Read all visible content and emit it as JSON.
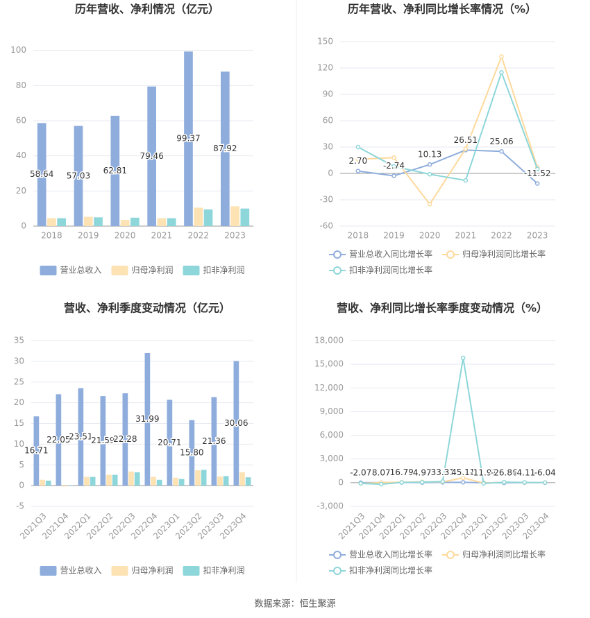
{
  "chart_data": [
    {
      "type": "bar",
      "title": "历年营收、净利情况（亿元）",
      "categories": [
        "2018",
        "2019",
        "2020",
        "2021",
        "2022",
        "2023"
      ],
      "series": [
        {
          "name": "营业总收入",
          "color": "#8eaddc",
          "values": [
            58.64,
            57.03,
            62.81,
            79.46,
            99.37,
            87.92
          ],
          "data_labels": true
        },
        {
          "name": "归母净利润",
          "color": "#fde2b3",
          "values": [
            4.5,
            5.3,
            3.5,
            4.5,
            10.5,
            11.3
          ]
        },
        {
          "name": "扣非净利润",
          "color": "#8dd6d9",
          "values": [
            4.5,
            5.0,
            4.8,
            4.5,
            9.5,
            10.0
          ]
        }
      ],
      "ylim": [
        0,
        105
      ],
      "yticks": [
        0,
        20,
        40,
        60,
        80,
        100
      ],
      "grid": true,
      "legend": "bottom"
    },
    {
      "type": "line",
      "title": "历年营收、净利同比增长率情况（%）",
      "categories": [
        "2018",
        "2019",
        "2020",
        "2021",
        "2022",
        "2023"
      ],
      "series": [
        {
          "name": "营业总收入同比增长率",
          "color": "#8eaddc",
          "values": [
            2.7,
            -2.74,
            10.13,
            26.51,
            25.06,
            -11.52
          ],
          "value_labels": [
            "2.70",
            "-2.74",
            "10.13",
            "26.51",
            "25.06",
            "-11.52"
          ],
          "data_labels": true
        },
        {
          "name": "归母净利润同比增长率",
          "color": "#fdd99c",
          "values": [
            16,
            18,
            -35,
            28,
            133,
            7
          ]
        },
        {
          "name": "扣非净利润同比增长率",
          "color": "#8dd6d9",
          "values": [
            30,
            8,
            -1,
            -8,
            115,
            5
          ]
        }
      ],
      "ylim": [
        -60,
        150
      ],
      "yticks": [
        -60,
        -30,
        0,
        30,
        60,
        90,
        120,
        150
      ],
      "grid": true,
      "legend": "bottom"
    },
    {
      "type": "bar",
      "title": "营收、净利季度变动情况（亿元）",
      "categories": [
        "2021Q3",
        "2021Q4",
        "2022Q1",
        "2022Q2",
        "2022Q3",
        "2022Q4",
        "2023Q1",
        "2023Q2",
        "2023Q3",
        "2023Q4"
      ],
      "series": [
        {
          "name": "营业总收入",
          "color": "#8eaddc",
          "values": [
            16.71,
            22.05,
            23.51,
            21.59,
            22.28,
            31.99,
            20.71,
            15.8,
            21.36,
            30.06
          ],
          "value_labels": [
            "16.71",
            "22.05",
            "23.51",
            "21.59",
            "22.28",
            "31.99",
            "20.71",
            "15.80",
            "21.36",
            "30.06"
          ],
          "data_labels": true
        },
        {
          "name": "归母净利润",
          "color": "#fde2b3",
          "values": [
            1.4,
            -0.2,
            2.1,
            2.6,
            3.4,
            2.1,
            1.9,
            3.7,
            2.2,
            3.2
          ]
        },
        {
          "name": "扣非净利润",
          "color": "#8dd6d9",
          "values": [
            1.2,
            0.1,
            2.1,
            2.6,
            3.2,
            1.4,
            1.6,
            3.8,
            2.3,
            2.0
          ]
        }
      ],
      "ylim": [
        -5,
        35
      ],
      "yticks": [
        -5,
        0,
        5,
        10,
        15,
        20,
        25,
        30,
        35
      ],
      "grid": true,
      "legend": "bottom",
      "rotate_labels": true
    },
    {
      "type": "line",
      "title": "营收、净利同比增长率季度变动情况（%）",
      "categories": [
        "2021Q3",
        "2021Q4",
        "2022Q1",
        "2022Q2",
        "2022Q3",
        "2022Q4",
        "2023Q1",
        "2023Q2",
        "2023Q3",
        "2023Q4"
      ],
      "series": [
        {
          "name": "营业总收入同比增长率",
          "color": "#8eaddc",
          "values": [
            -2.07,
            8.07,
            16.79,
            4.97,
            33.31,
            45.11,
            -11.91,
            -26.86,
            -4.11,
            -6.04
          ],
          "data_labels": true
        },
        {
          "name": "归母净利润同比增长率",
          "color": "#fdd99c",
          "values": [
            -100,
            10,
            50,
            100,
            100,
            600,
            -50,
            50,
            10,
            10
          ]
        },
        {
          "name": "扣非净利润同比增长率",
          "color": "#8dd6d9",
          "values": [
            -100,
            -200,
            30,
            50,
            150,
            15800,
            -100,
            50,
            30,
            10
          ]
        }
      ],
      "ylim": [
        -3000,
        18000
      ],
      "yticks": [
        {
          "value": -3000,
          "label": "-3,000"
        },
        0,
        {
          "value": 3000,
          "label": "3,000"
        },
        {
          "value": 6000,
          "label": "6,000"
        },
        {
          "value": 9000,
          "label": "9,000"
        },
        {
          "value": 12000,
          "label": "12,000"
        },
        {
          "value": 15000,
          "label": "15,000"
        },
        {
          "value": 18000,
          "label": "18,000"
        }
      ],
      "grid": true,
      "legend": "bottom",
      "rotate_labels": true
    }
  ],
  "source": "数据来源：恒生聚源"
}
